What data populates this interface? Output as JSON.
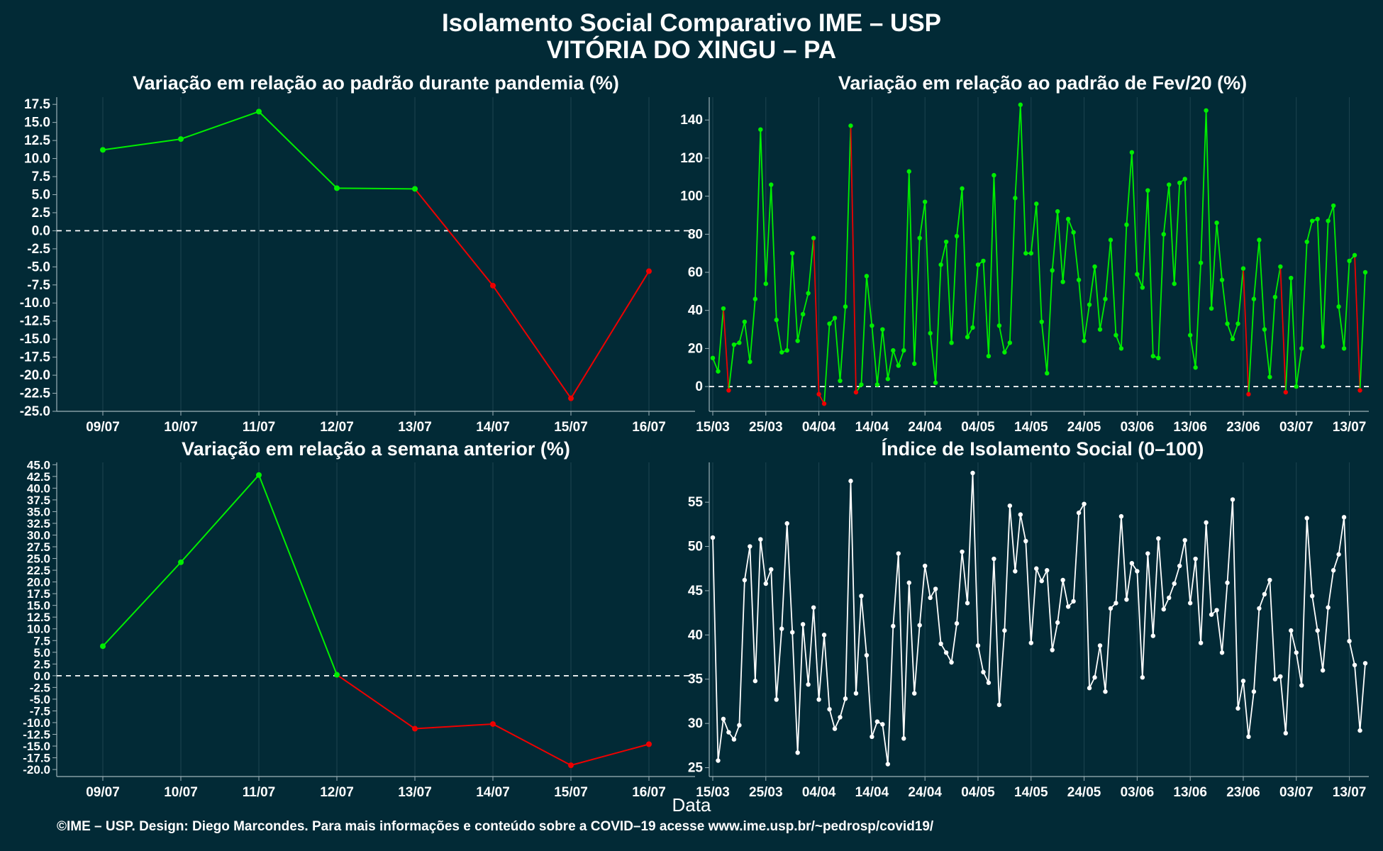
{
  "title_line1": "Isolamento Social Comparativo IME – USP",
  "title_line2": "VITÓRIA DO XINGU – PA",
  "xlabel": "Data",
  "footer": "©IME – USP. Design: Diego Marcondes. Para mais informações e conteúdo sobre a COVID–19 acesse www.ime.usp.br/~pedrosp/covid19/",
  "colors": {
    "background": "#022a36",
    "positive": "#00ee00",
    "negative": "#ee0000",
    "index_line": "#ffffff",
    "grid": "#1d4450"
  },
  "chart_data": [
    {
      "type": "line",
      "title": "Variação em relação ao padrão durante pandemia (%)",
      "categories": [
        "09/07",
        "10/07",
        "11/07",
        "12/07",
        "13/07",
        "14/07",
        "15/07",
        "16/07"
      ],
      "values": [
        11.2,
        12.7,
        16.5,
        5.9,
        5.8,
        -7.6,
        -23.2,
        -5.6
      ],
      "ylim": [
        -25,
        18.5
      ],
      "yticks": [
        17.5,
        15.0,
        12.5,
        10.0,
        7.5,
        5.0,
        2.5,
        0.0,
        -2.5,
        -5.0,
        -7.5,
        -10.0,
        -12.5,
        -15.0,
        -17.5,
        -20.0,
        -22.5,
        -25.0
      ],
      "reference_line": 0,
      "color_rule": "green when value >= 0, red when negative"
    },
    {
      "type": "line",
      "title": "Variação em relação ao padrão de Fev/20 (%)",
      "x_start": "15/03",
      "xticks": [
        "15/03",
        "25/03",
        "04/04",
        "14/04",
        "24/04",
        "04/05",
        "14/05",
        "24/05",
        "03/06",
        "13/06",
        "23/06",
        "03/07",
        "13/07"
      ],
      "yticks": [
        0,
        20,
        40,
        60,
        80,
        100,
        120,
        140
      ],
      "ylim": [
        -13,
        152
      ],
      "reference_line": 0,
      "values": [
        15,
        8,
        41,
        -2,
        22,
        23,
        34,
        13,
        46,
        135,
        54,
        106,
        35,
        18,
        19,
        70,
        24,
        38,
        49,
        78,
        -4,
        -9,
        33,
        36,
        3,
        42,
        137,
        -3,
        1,
        58,
        32,
        1,
        30,
        4,
        19,
        11,
        19,
        113,
        12,
        78,
        97,
        28,
        2,
        64,
        76,
        23,
        79,
        104,
        26,
        31,
        64,
        66,
        16,
        111,
        32,
        18,
        23,
        99,
        148,
        70,
        70,
        96,
        34,
        7,
        61,
        92,
        55,
        88,
        81,
        56,
        24,
        43,
        63,
        30,
        46,
        77,
        27,
        20,
        85,
        123,
        59,
        52,
        103,
        16,
        15,
        80,
        106,
        54,
        107,
        109,
        27,
        10,
        65,
        145,
        41,
        86,
        56,
        33,
        25,
        33,
        62,
        -4,
        46,
        77,
        30,
        5,
        47,
        63,
        -3,
        57,
        0,
        20,
        76,
        87,
        88,
        21,
        87,
        95,
        42,
        20,
        66,
        69,
        -2,
        60
      ],
      "color_rule": "green when value >= 0, red when negative"
    },
    {
      "type": "line",
      "title": "Variação em relação a semana anterior (%)",
      "categories": [
        "09/07",
        "10/07",
        "11/07",
        "12/07",
        "13/07",
        "14/07",
        "15/07",
        "16/07"
      ],
      "values": [
        6.3,
        24.2,
        42.8,
        0.2,
        -11.3,
        -10.3,
        -19.1,
        -14.6
      ],
      "ylim": [
        -21.5,
        45.5
      ],
      "yticks": [
        45.0,
        42.5,
        40.0,
        37.5,
        35.0,
        32.5,
        30.0,
        27.5,
        25.0,
        22.5,
        20.0,
        17.5,
        15.0,
        12.5,
        10.0,
        7.5,
        5.0,
        2.5,
        0.0,
        -2.5,
        -5.0,
        -7.5,
        -10.0,
        -12.5,
        -15.0,
        -17.5,
        -20.0
      ],
      "reference_line": 0,
      "color_rule": "green when value >= 0, red when negative"
    },
    {
      "type": "line",
      "title": "Índice de Isolamento Social (0–100)",
      "x_start": "15/03",
      "xticks": [
        "15/03",
        "25/03",
        "04/04",
        "14/04",
        "24/04",
        "04/05",
        "14/05",
        "24/05",
        "03/06",
        "13/06",
        "23/06",
        "03/07",
        "13/07"
      ],
      "yticks": [
        25,
        30,
        35,
        40,
        45,
        50,
        55
      ],
      "ylim": [
        24,
        59.5
      ],
      "values": [
        51,
        25.8,
        30.5,
        29,
        28.2,
        29.8,
        46.2,
        50,
        34.8,
        50.8,
        45.8,
        47.4,
        32.7,
        40.7,
        52.6,
        40.3,
        26.7,
        41.2,
        34.4,
        43.1,
        32.7,
        40,
        31.6,
        29.4,
        30.7,
        32.8,
        57.4,
        33.4,
        44.4,
        37.7,
        28.5,
        30.2,
        29.9,
        25.4,
        41,
        49.2,
        28.3,
        45.9,
        33.4,
        41.1,
        47.8,
        44.2,
        45.2,
        39,
        38,
        36.9,
        41.3,
        49.4,
        43.6,
        58.3,
        38.8,
        35.8,
        34.6,
        48.6,
        32.1,
        40.5,
        54.6,
        47.2,
        53.6,
        50.6,
        39.1,
        47.5,
        46.1,
        47.3,
        38.3,
        41.4,
        46.2,
        43.2,
        43.8,
        53.8,
        54.8,
        34,
        35.2,
        38.8,
        33.6,
        43,
        43.6,
        53.4,
        44,
        48.1,
        47.2,
        35.2,
        49.2,
        39.9,
        50.9,
        42.9,
        44.2,
        45.8,
        47.8,
        50.7,
        43.6,
        48.6,
        39.1,
        52.7,
        42.3,
        42.8,
        38,
        45.9,
        55.3,
        31.7,
        34.8,
        28.5,
        33.6,
        43,
        44.6,
        46.2,
        35,
        35.3,
        28.9,
        40.5,
        38,
        34.3,
        53.2,
        44.4,
        40.5,
        36,
        43.1,
        47.3,
        49.1,
        53.3,
        39.3,
        36.6,
        29.2,
        36.8
      ]
    }
  ]
}
